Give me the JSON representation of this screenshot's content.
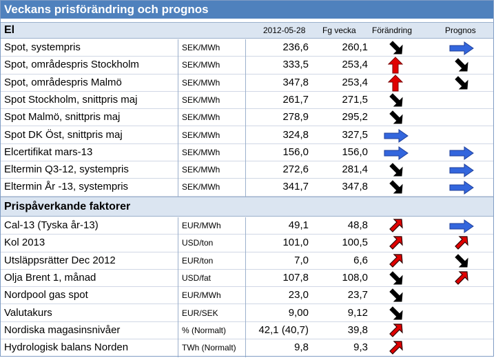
{
  "title": "Veckans prisförändring och prognos",
  "section_el": {
    "label": "El",
    "col_date": "2012-05-28",
    "col_prev": "Fg vecka",
    "col_change": "Förändring",
    "col_forecast": "Prognos"
  },
  "section_factors": {
    "label": "Prispåverkande faktorer"
  },
  "colors": {
    "header": "#4f81bd",
    "section": "#dbe5f1",
    "arrow_down": "#000000",
    "arrow_up": "#e00000",
    "arrow_flat": "#3366dd"
  },
  "el_rows": [
    {
      "name": "Spot, systempris",
      "unit": "SEK/MWh",
      "val": "236,6",
      "prev": "260,1",
      "change": "down",
      "forecast": "flat"
    },
    {
      "name": "Spot, områdespris Stockholm",
      "unit": "SEK/MWh",
      "val": "333,5",
      "prev": "253,4",
      "change": "up-big",
      "forecast": "down"
    },
    {
      "name": "Spot, områdespris Malmö",
      "unit": "SEK/MWh",
      "val": "347,8",
      "prev": "253,4",
      "change": "up-big",
      "forecast": "down"
    },
    {
      "name": "Spot Stockholm, snittpris maj",
      "unit": "SEK/MWh",
      "val": "261,7",
      "prev": "271,5",
      "change": "down",
      "forecast": ""
    },
    {
      "name": "Spot Malmö, snittpris maj",
      "unit": "SEK/MWh",
      "val": "278,9",
      "prev": "295,2",
      "change": "down",
      "forecast": ""
    },
    {
      "name": "Spot DK Öst, snittpris maj",
      "unit": "SEK/MWh",
      "val": "324,8",
      "prev": "327,5",
      "change": "flat",
      "forecast": ""
    },
    {
      "name": "Elcertifikat mars-13",
      "unit": "SEK/MWh",
      "val": "156,0",
      "prev": "156,0",
      "change": "flat",
      "forecast": "flat"
    },
    {
      "name": "Eltermin Q3-12, systempris",
      "unit": "SEK/MWh",
      "val": "272,6",
      "prev": "281,4",
      "change": "down",
      "forecast": "flat"
    },
    {
      "name": "Eltermin År -13, systempris",
      "unit": "SEK/MWh",
      "val": "341,7",
      "prev": "347,8",
      "change": "down",
      "forecast": "flat"
    }
  ],
  "factor_rows": [
    {
      "name": "Cal-13 (Tyska år-13)",
      "unit": "EUR/MWh",
      "val": "49,1",
      "prev": "48,8",
      "change": "up",
      "forecast": "flat"
    },
    {
      "name": "Kol 2013",
      "unit": "USD/ton",
      "val": "101,0",
      "prev": "100,5",
      "change": "up",
      "forecast": "up"
    },
    {
      "name": "Utsläppsrätter Dec 2012",
      "unit": "EUR/ton",
      "val": "7,0",
      "prev": "6,6",
      "change": "up",
      "forecast": "down"
    },
    {
      "name": "Olja Brent 1, månad",
      "unit": "USD/fat",
      "val": "107,8",
      "prev": "108,0",
      "change": "down",
      "forecast": "up"
    },
    {
      "name": "Nordpool gas spot",
      "unit": "EUR/MWh",
      "val": "23,0",
      "prev": "23,7",
      "change": "down",
      "forecast": ""
    },
    {
      "name": "Valutakurs",
      "unit": "EUR/SEK",
      "val": "9,00",
      "prev": "9,12",
      "change": "down",
      "forecast": ""
    },
    {
      "name": "Nordiska magasinsnivåer",
      "unit": "% (Normalt)",
      "val": "42,1 (40,7)",
      "prev": "39,8",
      "change": "up",
      "forecast": ""
    },
    {
      "name": "Hydrologisk balans Norden",
      "unit": "TWh (Normalt)",
      "val": "9,8",
      "prev": "9,3",
      "change": "up",
      "forecast": ""
    }
  ]
}
